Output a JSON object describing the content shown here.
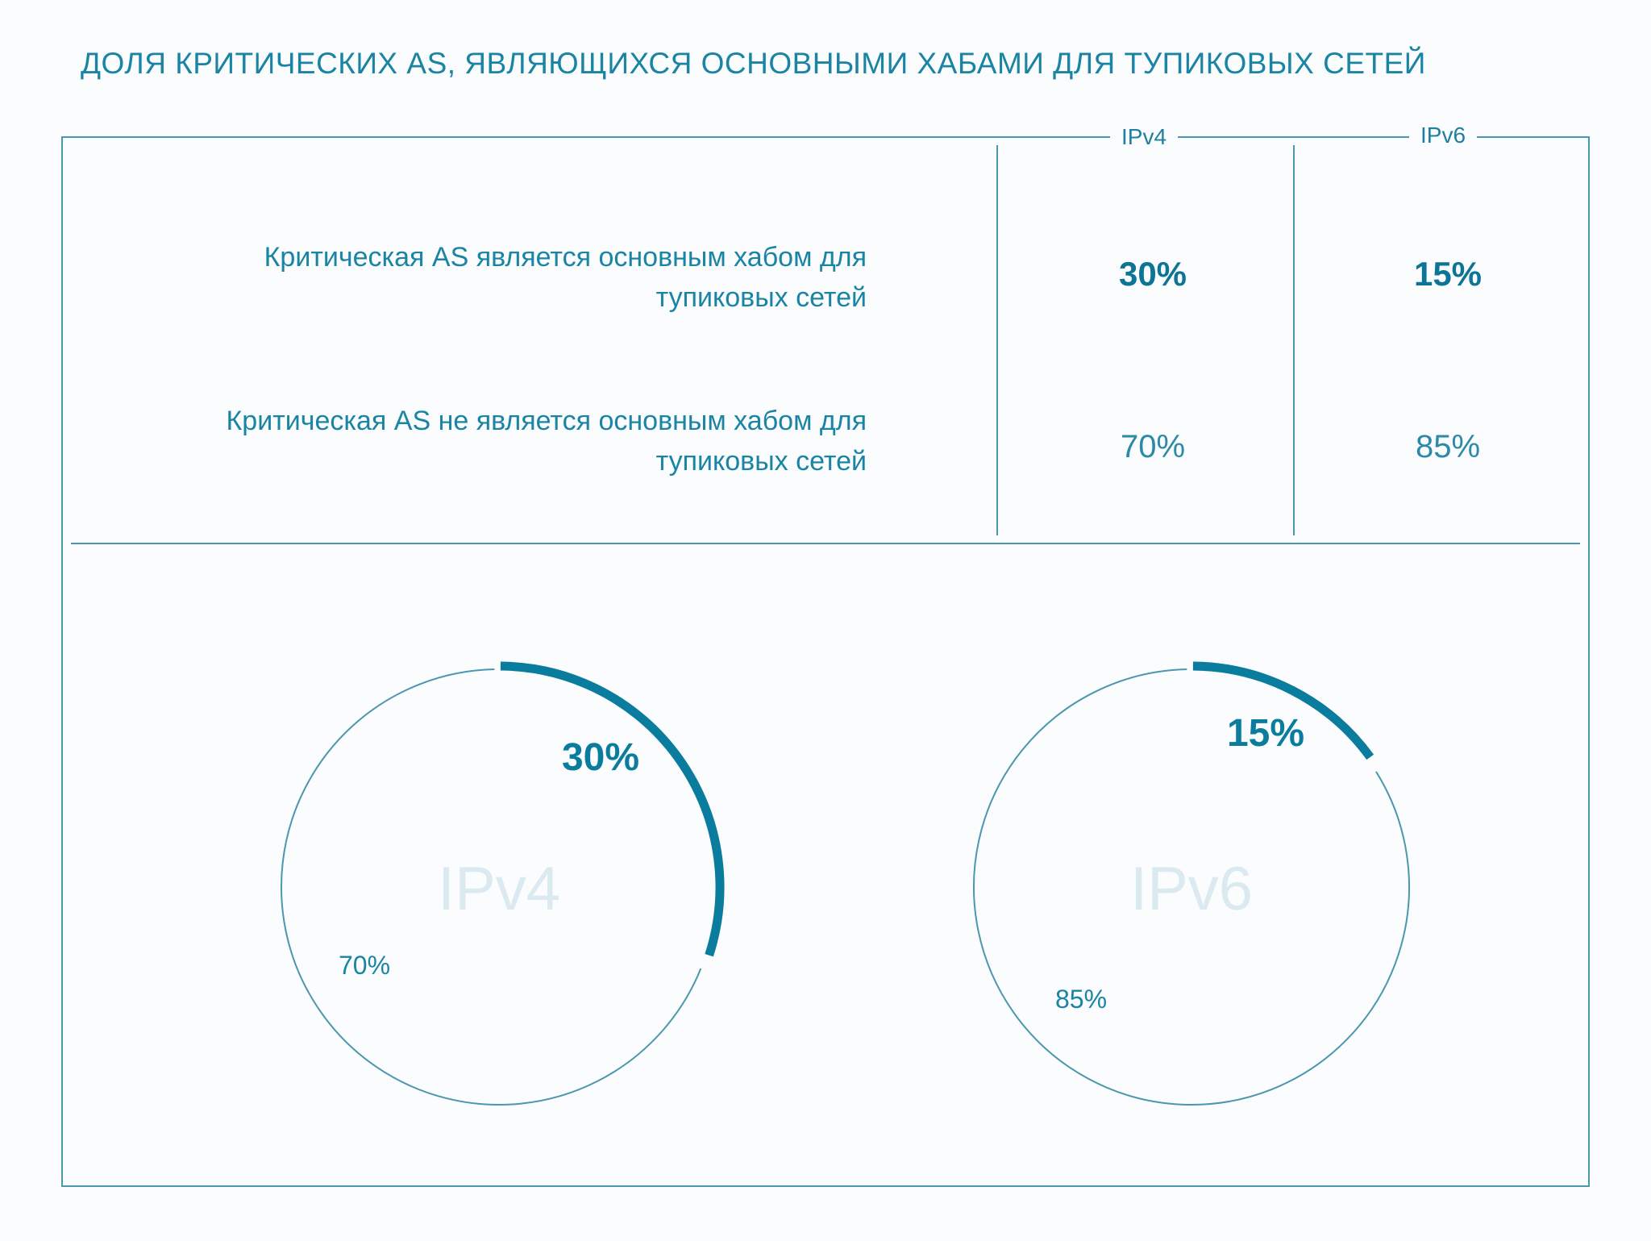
{
  "title": "ДОЛЯ КРИТИЧЕСКИХ AS, ЯВЛЯЮЩИХСЯ ОСНОВНЫМИ ХАБАМИ ДЛЯ ТУПИКОВЫХ СЕТЕЙ",
  "colors": {
    "accent": "#0a7c9e",
    "line": "#4a97ae",
    "text": "#1a84a4",
    "center_label": "#dbe9f0"
  },
  "table": {
    "columns": [
      "IPv4",
      "IPv6"
    ],
    "rows": [
      {
        "label": "Критическая AS является основным хабом для тупиковых сетей",
        "values": [
          "30%",
          "15%"
        ],
        "bold": true
      },
      {
        "label": "Критическая AS не является основным хабом для тупиковых сетей",
        "values": [
          "70%",
          "85%"
        ],
        "bold": false
      }
    ]
  },
  "chart_data": [
    {
      "type": "pie",
      "center_label": "IPv4",
      "slices": [
        {
          "value": 30,
          "label": "30%",
          "highlighted": true
        },
        {
          "value": 70,
          "label": "70%",
          "highlighted": false
        }
      ]
    },
    {
      "type": "pie",
      "center_label": "IPv6",
      "slices": [
        {
          "value": 15,
          "label": "15%",
          "highlighted": true
        },
        {
          "value": 85,
          "label": "85%",
          "highlighted": false
        }
      ]
    }
  ]
}
